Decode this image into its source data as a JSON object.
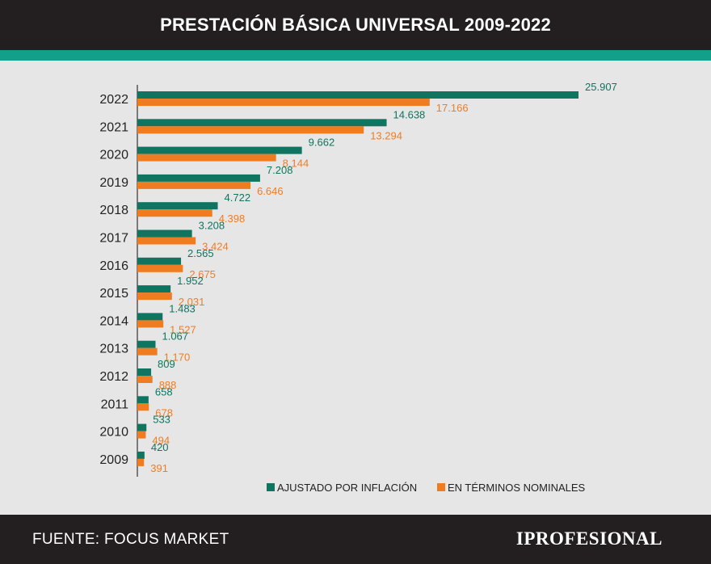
{
  "header": {
    "title": "PRESTACIÓN BÁSICA UNIVERSAL 2009-2022"
  },
  "footer": {
    "source": "FUENTE: FOCUS MARKET",
    "brand": "IPROFESIONAL"
  },
  "colors": {
    "header_bg": "#231f20",
    "accent": "#13a08b",
    "series_adjusted": "#0f7560",
    "series_nominal": "#f07c22",
    "background": "#e6e6e6"
  },
  "chart_data": {
    "type": "bar",
    "orientation": "horizontal",
    "title": "PRESTACIÓN BÁSICA UNIVERSAL 2009-2022",
    "xlabel": "",
    "ylabel": "",
    "xlim": [
      0,
      26000
    ],
    "grid": false,
    "legend_position": "bottom",
    "categories": [
      "2022",
      "2021",
      "2020",
      "2019",
      "2018",
      "2017",
      "2016",
      "2015",
      "2014",
      "2013",
      "2012",
      "2011",
      "2010",
      "2009"
    ],
    "series": [
      {
        "name": "AJUSTADO POR INFLACIÓN",
        "color": "#0f7560",
        "values": [
          25907,
          14638,
          9662,
          7208,
          4722,
          3208,
          2565,
          1952,
          1483,
          1067,
          809,
          658,
          533,
          420
        ],
        "labels": [
          "25.907",
          "14.638",
          "9.662",
          "7.208",
          "4.722",
          "3.208",
          "2.565",
          "1.952",
          "1.483",
          "1.067",
          "809",
          "658",
          "533",
          "420"
        ]
      },
      {
        "name": "EN TÉRMINOS NOMINALES",
        "color": "#f07c22",
        "values": [
          17166,
          13294,
          8144,
          6646,
          4398,
          3424,
          2675,
          2031,
          1527,
          1170,
          888,
          678,
          494,
          391
        ],
        "labels": [
          "17.166",
          "13.294",
          "8.144",
          "6.646",
          "4.398",
          "3.424",
          "2.675",
          "2.031",
          "1.527",
          "1.170",
          "888",
          "678",
          "494",
          "391"
        ]
      }
    ]
  }
}
